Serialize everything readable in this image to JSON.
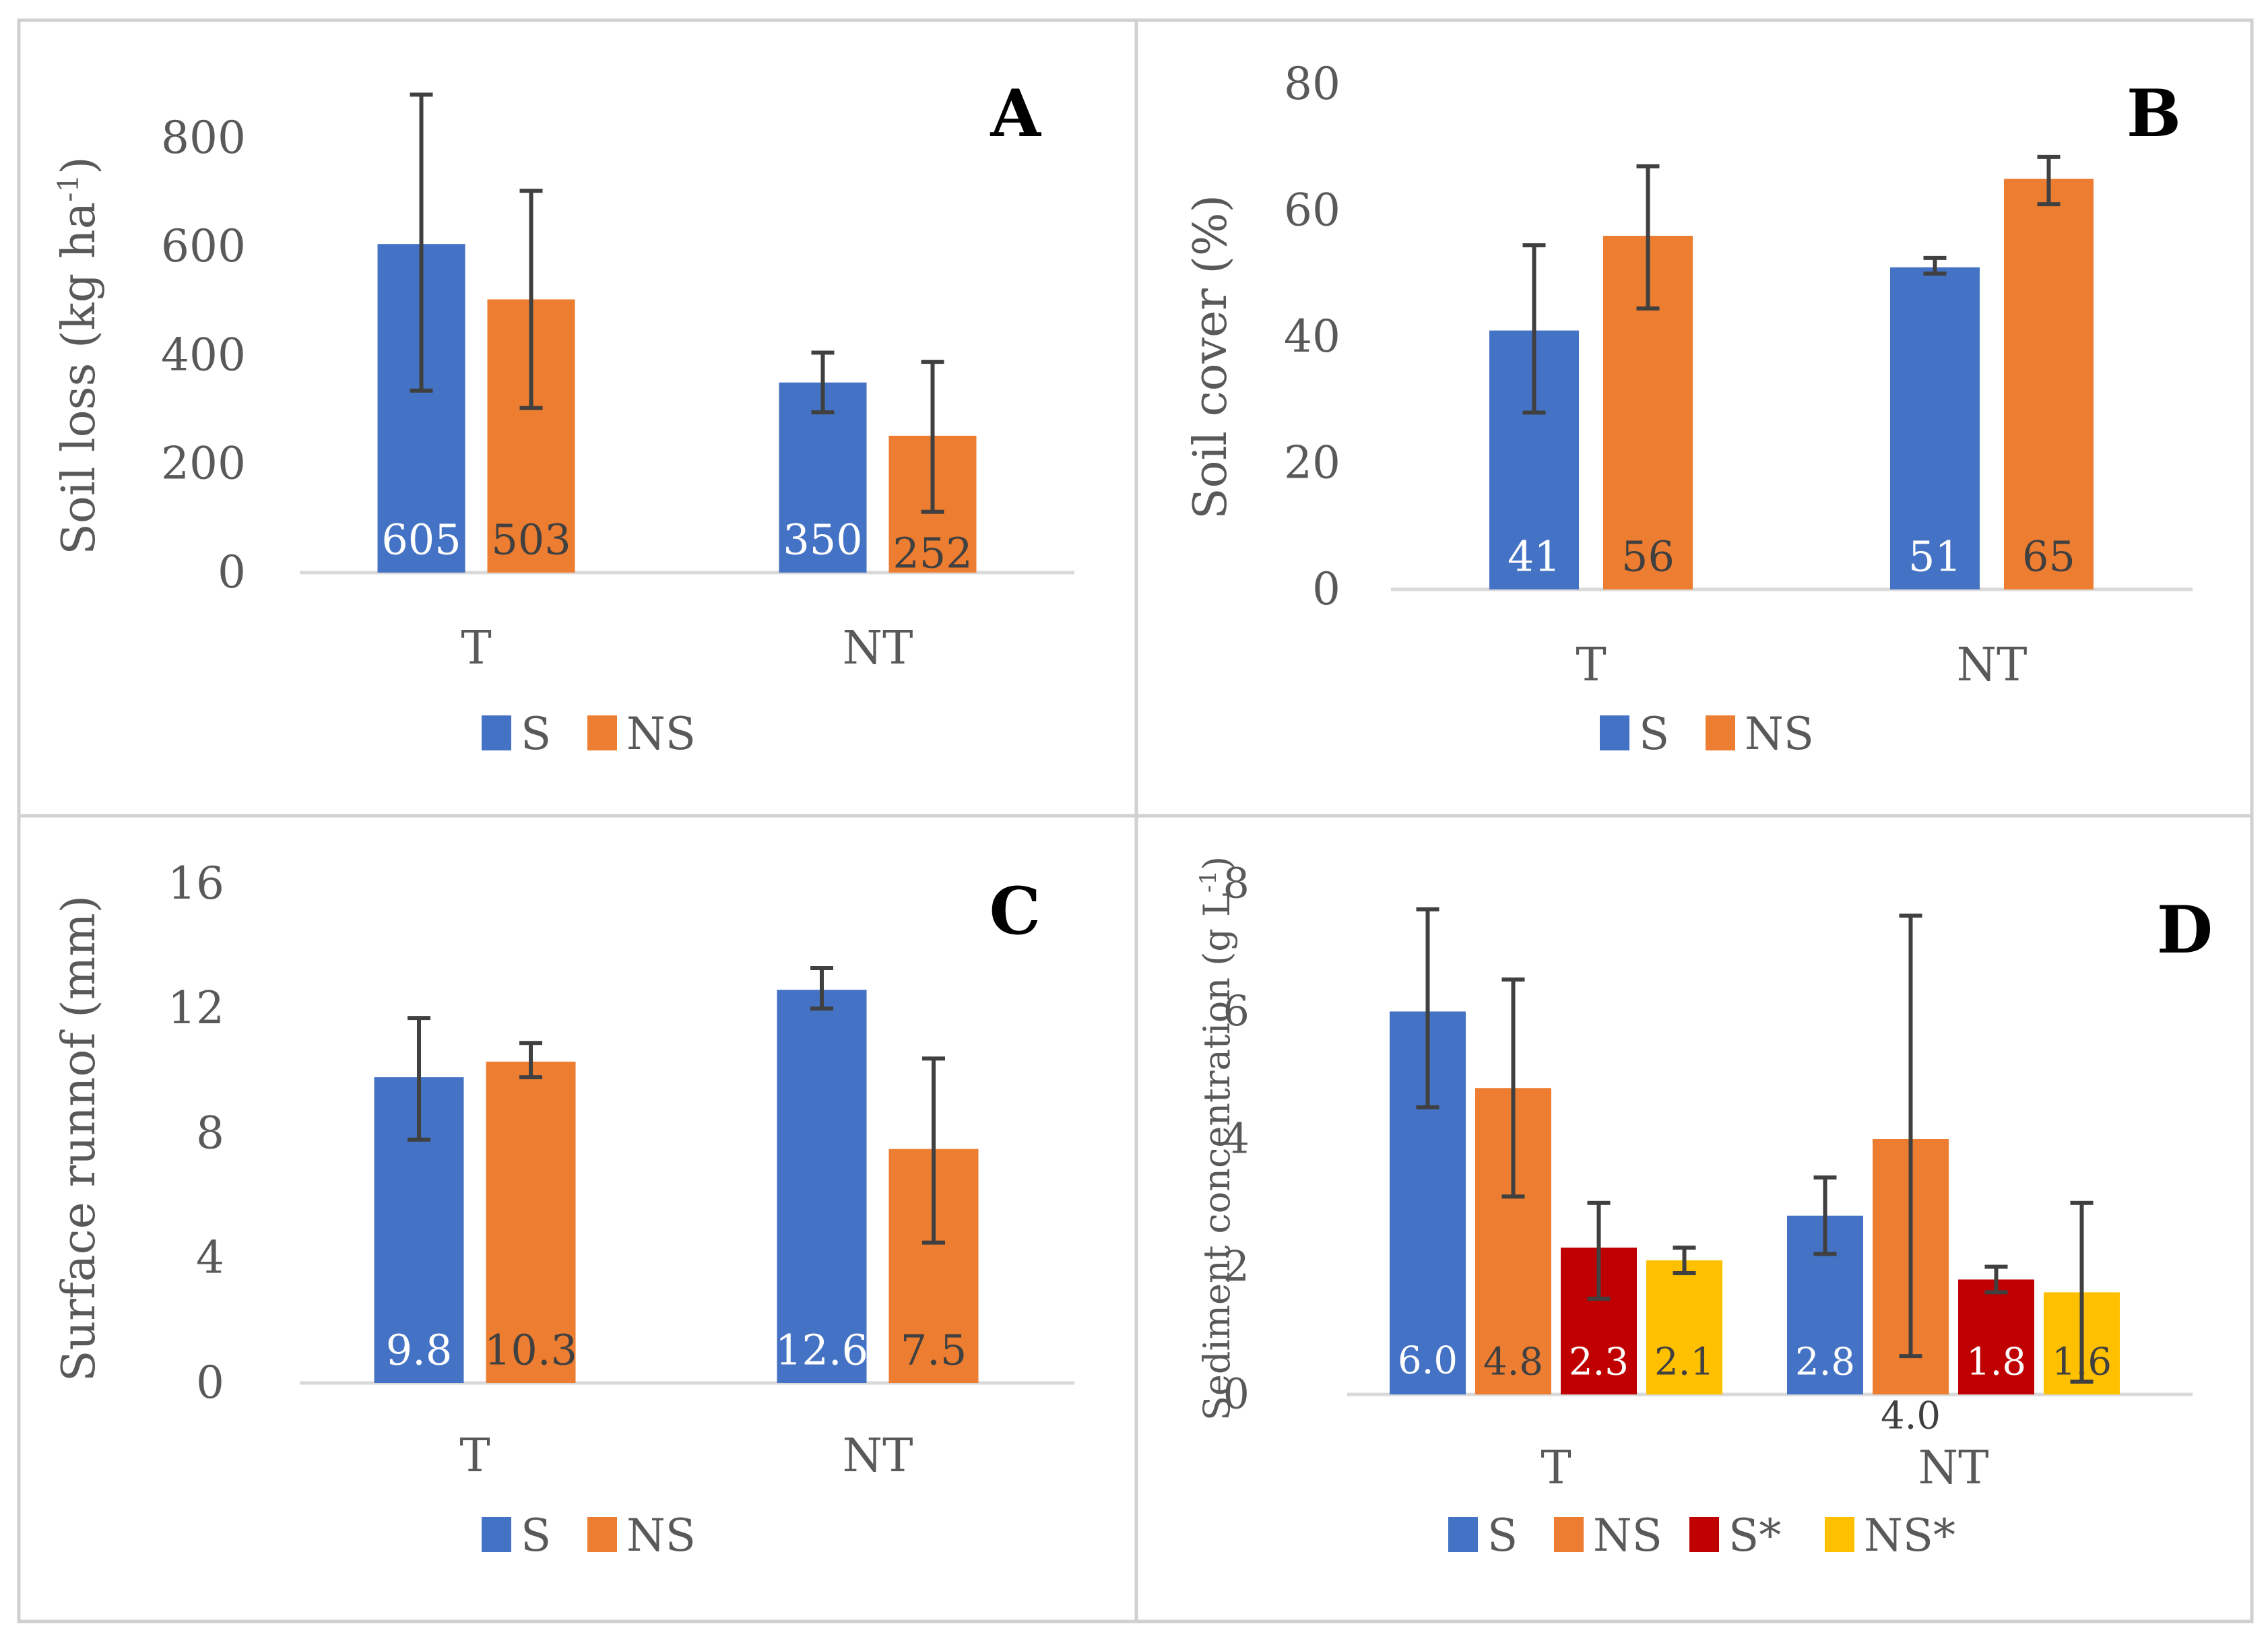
{
  "colors": {
    "S": "#4472C4",
    "NS": "#ED7D31",
    "S*": "#C00000",
    "NS*": "#FFC000",
    "axis": "#D9D9D9",
    "text": "#595959",
    "errorbar": "#404040",
    "border": "#D0D0D0"
  },
  "chart_data": [
    {
      "type": "bar",
      "panel_label": "A",
      "ylabel_main": "Soil loss (kg ha",
      "ylabel_sup": "-1",
      "ylabel_end": ")",
      "categories": [
        "T",
        "NT"
      ],
      "ylim": [
        0,
        800
      ],
      "yticks": [
        "0",
        "200",
        "400",
        "600",
        "800"
      ],
      "ytick_values": [
        0,
        200,
        400,
        600,
        800
      ],
      "series": [
        {
          "name": "S",
          "values": [
            605,
            350
          ],
          "labels": [
            "605",
            "350"
          ],
          "err_low": [
            335,
            295
          ],
          "err_high": [
            880,
            405
          ]
        },
        {
          "name": "NS",
          "values": [
            503,
            252
          ],
          "labels": [
            "503",
            "252"
          ],
          "err_low": [
            303,
            112
          ],
          "err_high": [
            703,
            388
          ]
        }
      ],
      "legend": [
        "S",
        "NS"
      ]
    },
    {
      "type": "bar",
      "panel_label": "B",
      "ylabel_main": "Soil cover (%)",
      "ylabel_sup": "",
      "ylabel_end": "",
      "categories": [
        "T",
        "NT"
      ],
      "ylim": [
        0,
        80
      ],
      "yticks": [
        "0",
        "20",
        "40",
        "60",
        "80"
      ],
      "ytick_values": [
        0,
        20,
        40,
        60,
        80
      ],
      "series": [
        {
          "name": "S",
          "values": [
            41,
            51
          ],
          "labels": [
            "41",
            "51"
          ],
          "err_low": [
            28,
            50
          ],
          "err_high": [
            54.5,
            52.5
          ]
        },
        {
          "name": "NS",
          "values": [
            56,
            65
          ],
          "labels": [
            "56",
            "65"
          ],
          "err_low": [
            44.5,
            61
          ],
          "err_high": [
            67,
            68.5
          ]
        }
      ],
      "legend": [
        "S",
        "NS"
      ]
    },
    {
      "type": "bar",
      "panel_label": "C",
      "ylabel_main": "Surface runnof (mm)",
      "ylabel_sup": "",
      "ylabel_end": "",
      "categories": [
        "T",
        "NT"
      ],
      "ylim": [
        0,
        16
      ],
      "yticks": [
        "0",
        "4",
        "8",
        "12",
        "16"
      ],
      "ytick_values": [
        0,
        4,
        8,
        12,
        16
      ],
      "series": [
        {
          "name": "S",
          "values": [
            9.8,
            12.6
          ],
          "labels": [
            "9.8",
            "12.6"
          ],
          "err_low": [
            7.8,
            12.0
          ],
          "err_high": [
            11.7,
            13.3
          ]
        },
        {
          "name": "NS",
          "values": [
            10.3,
            7.5
          ],
          "labels": [
            "10.3",
            "7.5"
          ],
          "err_low": [
            9.8,
            4.5
          ],
          "err_high": [
            10.9,
            10.4
          ]
        }
      ],
      "legend": [
        "S",
        "NS"
      ]
    },
    {
      "type": "bar",
      "panel_label": "D",
      "ylabel_main": "Sediment concentration (g L",
      "ylabel_sup": "-1",
      "ylabel_end": ")",
      "categories": [
        "T",
        "NT"
      ],
      "ylim": [
        0,
        8
      ],
      "yticks": [
        "0",
        "2",
        "4",
        "6",
        "8"
      ],
      "ytick_values": [
        0,
        2,
        4,
        6,
        8
      ],
      "series": [
        {
          "name": "S",
          "values": [
            6.0,
            2.8
          ],
          "labels": [
            "6.0",
            "2.8"
          ],
          "err_low": [
            4.5,
            2.2
          ],
          "err_high": [
            7.6,
            3.4
          ]
        },
        {
          "name": "NS",
          "values": [
            4.8,
            4.0
          ],
          "labels": [
            "4.8",
            "4.0"
          ],
          "err_low": [
            3.1,
            0.6
          ],
          "err_high": [
            6.5,
            7.5
          ]
        },
        {
          "name": "S*",
          "values": [
            2.3,
            1.8
          ],
          "labels": [
            "2.3",
            "1.8"
          ],
          "err_low": [
            1.5,
            1.6
          ],
          "err_high": [
            3.0,
            2.0
          ]
        },
        {
          "name": "NS*",
          "values": [
            2.1,
            1.6
          ],
          "labels": [
            "2.1",
            "1.6"
          ],
          "err_low": [
            1.9,
            0.2
          ],
          "err_high": [
            2.3,
            3.0
          ]
        }
      ],
      "legend": [
        "S",
        "NS",
        "S*",
        "NS*"
      ]
    }
  ]
}
